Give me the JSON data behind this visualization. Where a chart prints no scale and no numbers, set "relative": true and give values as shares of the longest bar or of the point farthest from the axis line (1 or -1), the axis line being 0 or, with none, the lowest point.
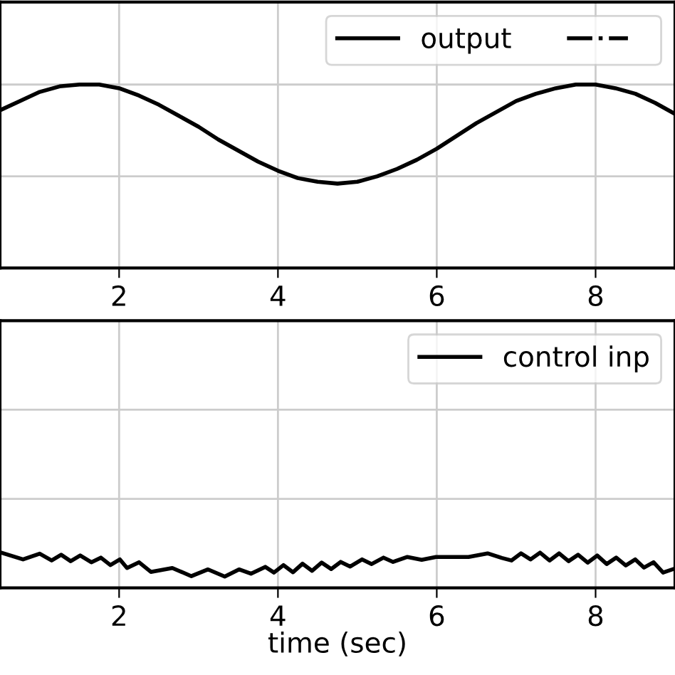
{
  "chart_data": [
    {
      "type": "line",
      "relative": true,
      "x": [
        0.5,
        0.75,
        1.0,
        1.25,
        1.5,
        1.75,
        2.0,
        2.25,
        2.5,
        2.75,
        3.0,
        3.25,
        3.5,
        3.75,
        4.0,
        4.25,
        4.5,
        4.75,
        5.0,
        5.25,
        5.5,
        5.75,
        6.0,
        6.25,
        6.5,
        6.75,
        7.0,
        7.25,
        7.5,
        7.75,
        8.0,
        8.25,
        8.5,
        8.75,
        9.0
      ],
      "series": [
        {
          "name": "output",
          "color": "#000000",
          "line_style": "solid",
          "values": [
            0.86,
            0.91,
            0.96,
            0.99,
            1.0,
            1.0,
            0.98,
            0.94,
            0.89,
            0.83,
            0.77,
            0.7,
            0.64,
            0.58,
            0.53,
            0.49,
            0.47,
            0.46,
            0.47,
            0.5,
            0.54,
            0.59,
            0.65,
            0.72,
            0.79,
            0.85,
            0.91,
            0.95,
            0.98,
            1.0,
            1.0,
            0.98,
            0.95,
            0.9,
            0.84
          ]
        },
        {
          "color": "#000000",
          "line_style": "dashdot",
          "values": [
            null,
            null,
            null,
            null,
            null,
            null,
            null,
            null,
            null,
            null,
            null,
            null,
            null,
            null,
            null,
            null,
            null,
            null,
            null,
            null,
            null,
            null,
            null,
            null,
            null,
            null,
            null,
            null,
            null,
            null,
            null,
            null,
            null,
            null,
            null
          ]
        }
      ],
      "xlim": [
        0.5,
        9.0
      ],
      "xticks": [
        2,
        4,
        6,
        8
      ],
      "tick_labels": "x",
      "grid": true,
      "legend": "top right"
    },
    {
      "type": "line",
      "relative": true,
      "xlabel": "time (sec)",
      "x": [
        0.5,
        0.79,
        1.0,
        1.15,
        1.27,
        1.39,
        1.51,
        1.65,
        1.77,
        1.89,
        2.01,
        2.1,
        2.25,
        2.4,
        2.67,
        2.91,
        3.12,
        3.33,
        3.51,
        3.66,
        3.84,
        3.95,
        4.07,
        4.19,
        4.31,
        4.43,
        4.55,
        4.67,
        4.79,
        4.91,
        5.06,
        5.18,
        5.33,
        5.45,
        5.63,
        5.81,
        5.99,
        6.4,
        6.64,
        6.82,
        6.94,
        7.06,
        7.18,
        7.3,
        7.42,
        7.54,
        7.66,
        7.78,
        7.9,
        8.02,
        8.14,
        8.26,
        8.38,
        8.5,
        8.61,
        8.73,
        8.85,
        8.98
      ],
      "series": [
        {
          "name": "control inp",
          "color": "#000000",
          "line_style": "solid",
          "values": [
            1.0,
            0.8,
            0.96,
            0.77,
            0.93,
            0.75,
            0.91,
            0.72,
            0.85,
            0.64,
            0.8,
            0.56,
            0.72,
            0.45,
            0.56,
            0.33,
            0.52,
            0.32,
            0.52,
            0.4,
            0.59,
            0.43,
            0.64,
            0.44,
            0.68,
            0.48,
            0.71,
            0.53,
            0.73,
            0.6,
            0.8,
            0.67,
            0.85,
            0.73,
            0.87,
            0.79,
            0.87,
            0.87,
            0.97,
            0.84,
            0.77,
            0.97,
            0.8,
            0.99,
            0.77,
            0.97,
            0.75,
            0.93,
            0.71,
            0.91,
            0.67,
            0.85,
            0.63,
            0.8,
            0.57,
            0.72,
            0.43,
            0.53
          ]
        }
      ],
      "xlim": [
        0.5,
        9.0
      ],
      "xticks": [
        2,
        4,
        6,
        8
      ],
      "tick_labels": "x",
      "grid": true,
      "legend": "top right"
    }
  ]
}
